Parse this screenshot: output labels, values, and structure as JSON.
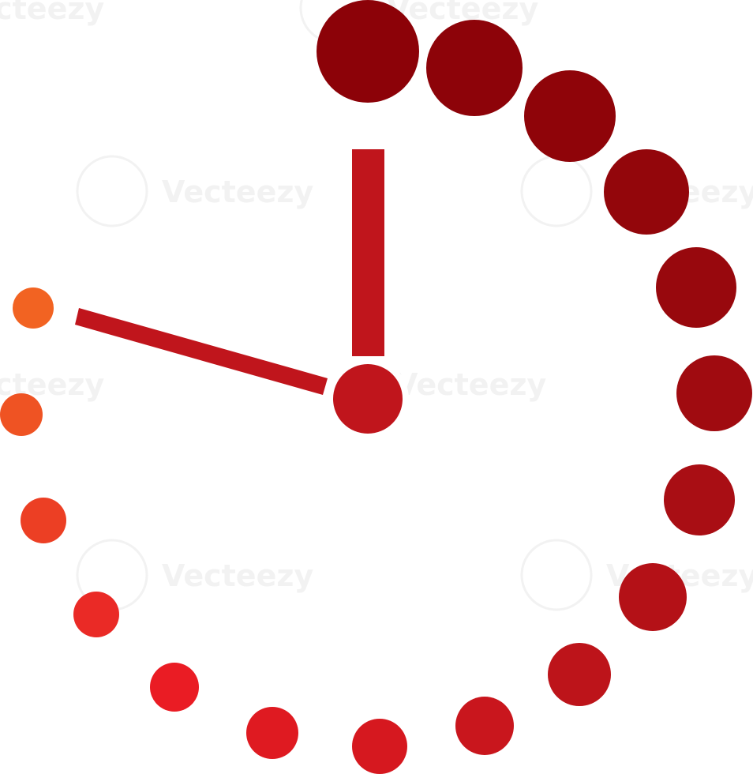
{
  "watermark": {
    "text": "Vecteezy",
    "color": "#f2f2f2"
  },
  "icon": {
    "name": "clock-timer-icon",
    "colors": {
      "dark": "#8c0208",
      "mid": "#c0151c",
      "bright": "#ec1c24",
      "orange": "#f26322"
    }
  }
}
